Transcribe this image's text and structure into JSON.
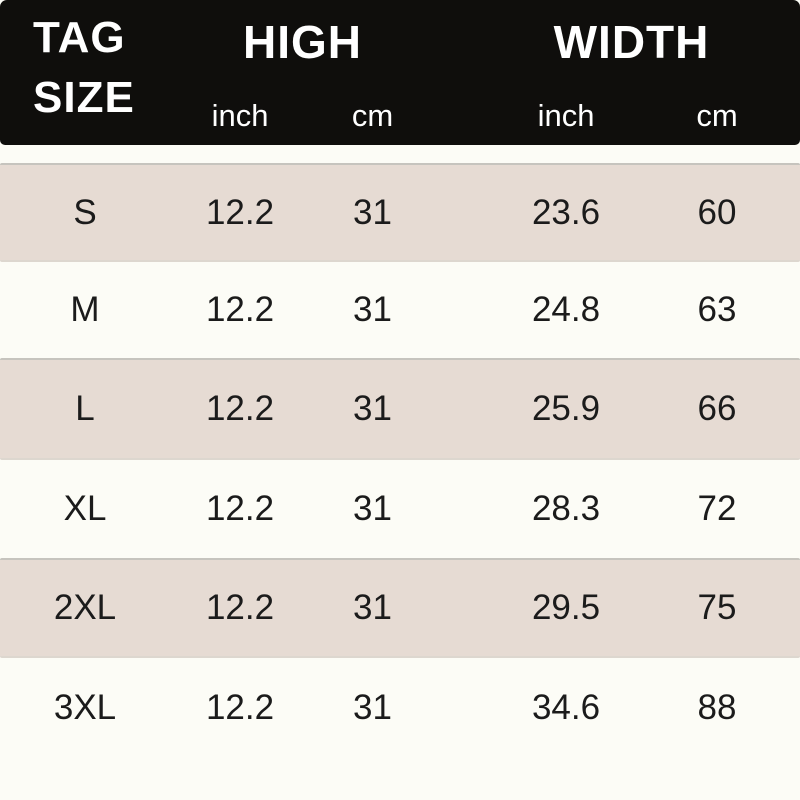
{
  "header": {
    "tag": {
      "line1": "TAG",
      "line2": "SIZE"
    },
    "groups": [
      {
        "label": "HIGH",
        "sub": [
          "inch",
          "cm"
        ]
      },
      {
        "label": "WIDTH",
        "sub": [
          "inch",
          "cm"
        ]
      }
    ]
  },
  "table": {
    "rows": [
      {
        "size": "S",
        "high_inch": "12.2",
        "high_cm": "31",
        "width_inch": "23.6",
        "width_cm": "60"
      },
      {
        "size": "M",
        "high_inch": "12.2",
        "high_cm": "31",
        "width_inch": "24.8",
        "width_cm": "63"
      },
      {
        "size": "L",
        "high_inch": "12.2",
        "high_cm": "31",
        "width_inch": "25.9",
        "width_cm": "66"
      },
      {
        "size": "XL",
        "high_inch": "12.2",
        "high_cm": "31",
        "width_inch": "28.3",
        "width_cm": "72"
      },
      {
        "size": "2XL",
        "high_inch": "12.2",
        "high_cm": "31",
        "width_inch": "29.5",
        "width_cm": "75"
      },
      {
        "size": "3XL",
        "high_inch": "12.2",
        "high_cm": "31",
        "width_inch": "34.6",
        "width_cm": "88"
      }
    ]
  },
  "colors": {
    "header_bg": "#0f0e0c",
    "header_text": "#ffffff",
    "band_beige": "#e6dbd3",
    "band_white": "#fcfcf6",
    "text": "#1b1b1b"
  },
  "chart_data": {
    "type": "table",
    "title": "TAG SIZE",
    "column_groups": [
      {
        "label": "HIGH",
        "columns": [
          "inch",
          "cm"
        ]
      },
      {
        "label": "WIDTH",
        "columns": [
          "inch",
          "cm"
        ]
      }
    ],
    "columns": [
      "TAG SIZE",
      "HIGH (inch)",
      "HIGH (cm)",
      "WIDTH (inch)",
      "WIDTH (cm)"
    ],
    "rows": [
      [
        "S",
        12.2,
        31,
        23.6,
        60
      ],
      [
        "M",
        12.2,
        31,
        24.8,
        63
      ],
      [
        "L",
        12.2,
        31,
        25.9,
        66
      ],
      [
        "XL",
        12.2,
        31,
        28.3,
        72
      ],
      [
        "2XL",
        12.2,
        31,
        29.5,
        75
      ],
      [
        "3XL",
        12.2,
        31,
        34.6,
        88
      ]
    ]
  }
}
